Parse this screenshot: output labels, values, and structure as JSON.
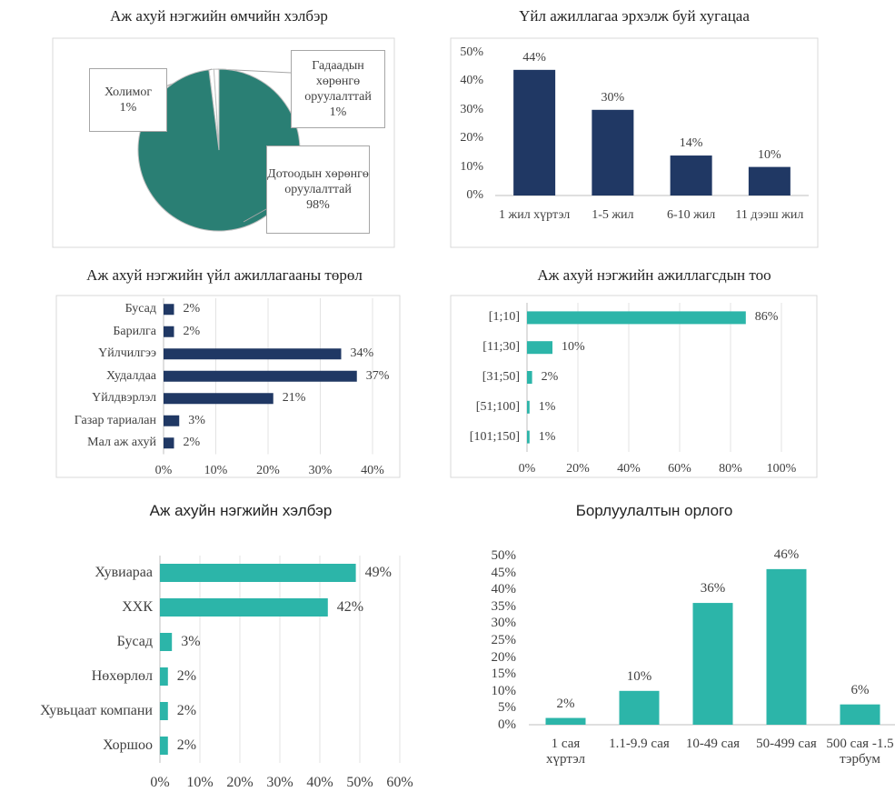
{
  "chart_data": [
    {
      "type": "pie",
      "title": "Аж ахуй нэгжийн өмчийн хэлбэр",
      "categories": [
        "Холимог",
        "Гадаадын хөрөнгө оруулалттай",
        "Дотоодын хөрөнгө оруулалттай"
      ],
      "values": [
        1,
        1,
        98
      ],
      "value_labels": [
        "1%",
        "1%",
        "98%"
      ],
      "colors": [
        "#ffffff",
        "#ffffff",
        "#2a7f74"
      ]
    },
    {
      "type": "bar",
      "title": "Үйл ажиллагаа эрхэлж буй хугацаа",
      "categories": [
        "1 жил хүртэл",
        "1-5 жил",
        "6-10 жил",
        "11 дээш жил"
      ],
      "values": [
        44,
        30,
        14,
        10
      ],
      "value_labels": [
        "44%",
        "30%",
        "14%",
        "10%"
      ],
      "color": "#203864",
      "ylim": [
        0,
        50
      ],
      "yticks": [
        {
          "value": 0,
          "label": "0%"
        },
        {
          "value": 10,
          "label": "10%"
        },
        {
          "value": 20,
          "label": "20%"
        },
        {
          "value": 30,
          "label": "30%"
        },
        {
          "value": 40,
          "label": "40%"
        },
        {
          "value": 50,
          "label": "50%"
        }
      ],
      "grid": false
    },
    {
      "type": "hbar",
      "title": "Аж ахуй нэгжийн үйл ажиллагааны төрөл",
      "categories": [
        "Бусад",
        "Барилга",
        "Үйлчилгээ",
        "Худалдаа",
        "Үйлдвэрлэл",
        "Газар тариалан",
        "Мал аж ахуй"
      ],
      "values": [
        2,
        2,
        34,
        37,
        21,
        3,
        2
      ],
      "value_labels": [
        "2%",
        "2%",
        "34%",
        "37%",
        "21%",
        "3%",
        "2%"
      ],
      "color": "#203864",
      "xlim": [
        0,
        40
      ],
      "xticks": [
        {
          "value": 0,
          "label": "0%"
        },
        {
          "value": 10,
          "label": "10%"
        },
        {
          "value": 20,
          "label": "20%"
        },
        {
          "value": 30,
          "label": "30%"
        },
        {
          "value": 40,
          "label": "40%"
        }
      ],
      "grid": true
    },
    {
      "type": "hbar",
      "title": "Аж ахуй нэгжийн ажиллагсдын тоо",
      "categories": [
        "[1;10]",
        "[11;30]",
        "[31;50]",
        "[51;100]",
        "[101;150]"
      ],
      "values": [
        86,
        10,
        2,
        1,
        1
      ],
      "value_labels": [
        "86%",
        "10%",
        "2%",
        "1%",
        "1%"
      ],
      "color": "#2cb5a9",
      "xlim": [
        0,
        100
      ],
      "xticks": [
        {
          "value": 0,
          "label": "0%"
        },
        {
          "value": 20,
          "label": "20%"
        },
        {
          "value": 40,
          "label": "40%"
        },
        {
          "value": 60,
          "label": "60%"
        },
        {
          "value": 80,
          "label": "80%"
        },
        {
          "value": 100,
          "label": "100%"
        }
      ],
      "grid": true
    },
    {
      "type": "hbar",
      "title": "Аж ахуйн нэгжийн хэлбэр",
      "categories": [
        "Хувиараа",
        "ХХК",
        "Бусад",
        "Нөхөрлөл",
        "Хувьцаат компани",
        "Хоршоо"
      ],
      "values": [
        49,
        42,
        3,
        2,
        2,
        2
      ],
      "value_labels": [
        "49%",
        "42%",
        "3%",
        "2%",
        "2%",
        "2%"
      ],
      "color": "#2cb5a9",
      "xlim": [
        0,
        60
      ],
      "xticks": [
        {
          "value": 0,
          "label": "0%"
        },
        {
          "value": 10,
          "label": "10%"
        },
        {
          "value": 20,
          "label": "20%"
        },
        {
          "value": 30,
          "label": "30%"
        },
        {
          "value": 40,
          "label": "40%"
        },
        {
          "value": 50,
          "label": "50%"
        },
        {
          "value": 60,
          "label": "60%"
        }
      ],
      "grid": true
    },
    {
      "type": "bar",
      "title": "Борлуулалтын орлого",
      "categories": [
        "1 сая хүртэл",
        "1.1-9.9 сая",
        "10-49 сая",
        "50-499 сая",
        "500 сая -1.5 тэрбум"
      ],
      "values": [
        2,
        10,
        36,
        46,
        6
      ],
      "value_labels": [
        "2%",
        "10%",
        "36%",
        "46%",
        "6%"
      ],
      "color": "#2cb5a9",
      "ylim": [
        0,
        50
      ],
      "yticks": [
        {
          "value": 0,
          "label": "0%"
        },
        {
          "value": 5,
          "label": "5%"
        },
        {
          "value": 10,
          "label": "10%"
        },
        {
          "value": 15,
          "label": "15%"
        },
        {
          "value": 20,
          "label": "20%"
        },
        {
          "value": 25,
          "label": "25%"
        },
        {
          "value": 30,
          "label": "30%"
        },
        {
          "value": 35,
          "label": "35%"
        },
        {
          "value": 40,
          "label": "40%"
        },
        {
          "value": 45,
          "label": "45%"
        },
        {
          "value": 50,
          "label": "50%"
        }
      ],
      "grid": false
    }
  ]
}
